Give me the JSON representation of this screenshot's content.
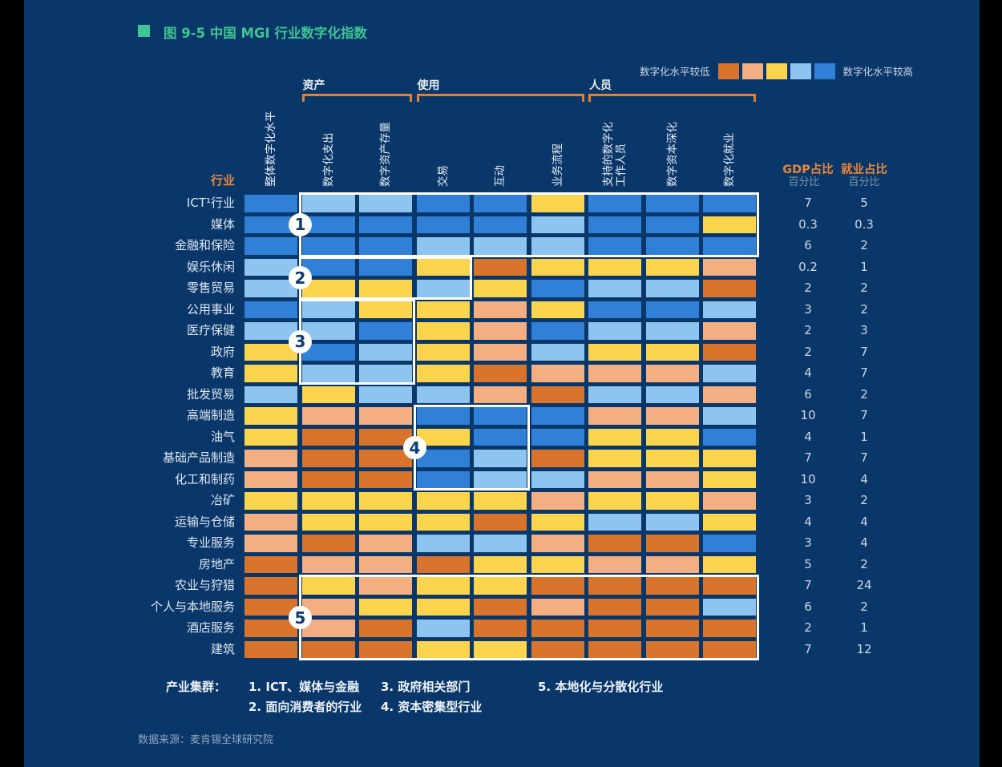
{
  "title": {
    "text": "图 9-5 中国 MGI 行业数字化指数",
    "marker_color": "#3fc492"
  },
  "legend": {
    "low_label": "数字化水平较低",
    "high_label": "数字化水平较高",
    "colors": [
      "#d9742c",
      "#f3ae81",
      "#fbd44e",
      "#8dc5f0",
      "#2f80d6"
    ]
  },
  "table_headers": {
    "industry": "行业",
    "gdp": "GDP占比",
    "gdp_unit": "百分比",
    "employment": "就业占比",
    "employment_unit": "百分比"
  },
  "chart_data": {
    "type": "heatmap",
    "title": "图 9-5 中国 MGI 行业数字化指数",
    "value_scale": {
      "min": 1,
      "max": 5,
      "low_meaning": "数字化水平较低",
      "high_meaning": "数字化水平较高",
      "palette_low_to_high": [
        "#d9742c",
        "#f3ae81",
        "#fbd44e",
        "#8dc5f0",
        "#2f80d6"
      ]
    },
    "column_groups": [
      {
        "label": "资产",
        "col_start": 1,
        "col_end": 2
      },
      {
        "label": "使用",
        "col_start": 3,
        "col_end": 5
      },
      {
        "label": "人员",
        "col_start": 6,
        "col_end": 8
      }
    ],
    "columns": [
      "整体数字化水平",
      "数字化支出",
      "数字资产存量",
      "交易",
      "互动",
      "业务流程",
      "支持的数字化\n工作人员",
      "数字资本深化",
      "数字化就业"
    ],
    "rows": [
      {
        "industry": "ICT¹行业",
        "values": [
          5,
          4,
          4,
          5,
          5,
          3,
          5,
          5,
          5
        ],
        "gdp": 7,
        "employment": 5
      },
      {
        "industry": "媒体",
        "values": [
          5,
          5,
          5,
          5,
          5,
          4,
          5,
          5,
          3
        ],
        "gdp": 0.3,
        "employment": 0.3
      },
      {
        "industry": "金融和保险",
        "values": [
          5,
          5,
          5,
          4,
          4,
          4,
          5,
          5,
          5
        ],
        "gdp": 6,
        "employment": 2
      },
      {
        "industry": "娱乐休闲",
        "values": [
          4,
          5,
          5,
          3,
          1,
          3,
          3,
          3,
          2
        ],
        "gdp": 0.2,
        "employment": 1
      },
      {
        "industry": "零售贸易",
        "values": [
          4,
          3,
          3,
          4,
          3,
          5,
          4,
          4,
          1
        ],
        "gdp": 2,
        "employment": 2
      },
      {
        "industry": "公用事业",
        "values": [
          5,
          4,
          3,
          3,
          2,
          3,
          5,
          5,
          4
        ],
        "gdp": 3,
        "employment": 2
      },
      {
        "industry": "医疗保健",
        "values": [
          4,
          4,
          5,
          3,
          2,
          5,
          4,
          4,
          2
        ],
        "gdp": 2,
        "employment": 3
      },
      {
        "industry": "政府",
        "values": [
          3,
          5,
          4,
          3,
          2,
          4,
          3,
          3,
          1
        ],
        "gdp": 2,
        "employment": 7
      },
      {
        "industry": "教育",
        "values": [
          3,
          4,
          4,
          3,
          1,
          2,
          2,
          2,
          4
        ],
        "gdp": 4,
        "employment": 7
      },
      {
        "industry": "批发贸易",
        "values": [
          4,
          3,
          4,
          4,
          2,
          1,
          4,
          4,
          2
        ],
        "gdp": 6,
        "employment": 2
      },
      {
        "industry": "高端制造",
        "values": [
          3,
          2,
          2,
          5,
          5,
          5,
          2,
          2,
          4
        ],
        "gdp": 10,
        "employment": 7
      },
      {
        "industry": "油气",
        "values": [
          3,
          1,
          1,
          3,
          5,
          5,
          3,
          3,
          5
        ],
        "gdp": 4,
        "employment": 1
      },
      {
        "industry": "基础产品制造",
        "values": [
          2,
          1,
          1,
          5,
          4,
          1,
          3,
          3,
          3
        ],
        "gdp": 7,
        "employment": 7
      },
      {
        "industry": "化工和制药",
        "values": [
          2,
          1,
          1,
          5,
          4,
          4,
          2,
          2,
          3
        ],
        "gdp": 10,
        "employment": 4
      },
      {
        "industry": "冶矿",
        "values": [
          3,
          3,
          3,
          3,
          3,
          2,
          3,
          3,
          2
        ],
        "gdp": 3,
        "employment": 2
      },
      {
        "industry": "运输与仓储",
        "values": [
          2,
          3,
          3,
          3,
          1,
          3,
          4,
          4,
          3
        ],
        "gdp": 4,
        "employment": 4
      },
      {
        "industry": "专业服务",
        "values": [
          2,
          1,
          2,
          4,
          4,
          2,
          1,
          1,
          5
        ],
        "gdp": 3,
        "employment": 4
      },
      {
        "industry": "房地产",
        "values": [
          1,
          2,
          2,
          1,
          3,
          3,
          2,
          2,
          3
        ],
        "gdp": 5,
        "employment": 2
      },
      {
        "industry": "农业与狩猎",
        "values": [
          1,
          3,
          2,
          3,
          3,
          1,
          1,
          1,
          1
        ],
        "gdp": 7,
        "employment": 24
      },
      {
        "industry": "个人与本地服务",
        "values": [
          1,
          2,
          3,
          3,
          1,
          2,
          1,
          1,
          4
        ],
        "gdp": 6,
        "employment": 2
      },
      {
        "industry": "酒店服务",
        "values": [
          1,
          2,
          1,
          4,
          1,
          1,
          1,
          1,
          1
        ],
        "gdp": 2,
        "employment": 1
      },
      {
        "industry": "建筑",
        "values": [
          1,
          1,
          1,
          3,
          3,
          1,
          1,
          1,
          1
        ],
        "gdp": 7,
        "employment": 12
      }
    ],
    "clusters": [
      {
        "num": "1",
        "row_start": 0,
        "row_end": 2,
        "col_start": 1,
        "col_end": 8
      },
      {
        "num": "2",
        "row_start": 3,
        "row_end": 4,
        "col_start": 1,
        "col_end": 3
      },
      {
        "num": "3",
        "row_start": 5,
        "row_end": 8,
        "col_start": 1,
        "col_end": 2
      },
      {
        "num": "4",
        "row_start": 10,
        "row_end": 13,
        "col_start": 3,
        "col_end": 4
      },
      {
        "num": "5",
        "row_start": 18,
        "row_end": 21,
        "col_start": 1,
        "col_end": 8
      }
    ]
  },
  "clusters_legend": {
    "title": "产业集群：",
    "items": [
      "1. ICT、媒体与金融",
      "2. 面向消费者的行业",
      "3. 政府相关部门",
      "4. 资本密集型行业",
      "5. 本地化与分散化行业"
    ]
  },
  "footer": {
    "source": "数据来源：麦肯锡全球研究院"
  }
}
